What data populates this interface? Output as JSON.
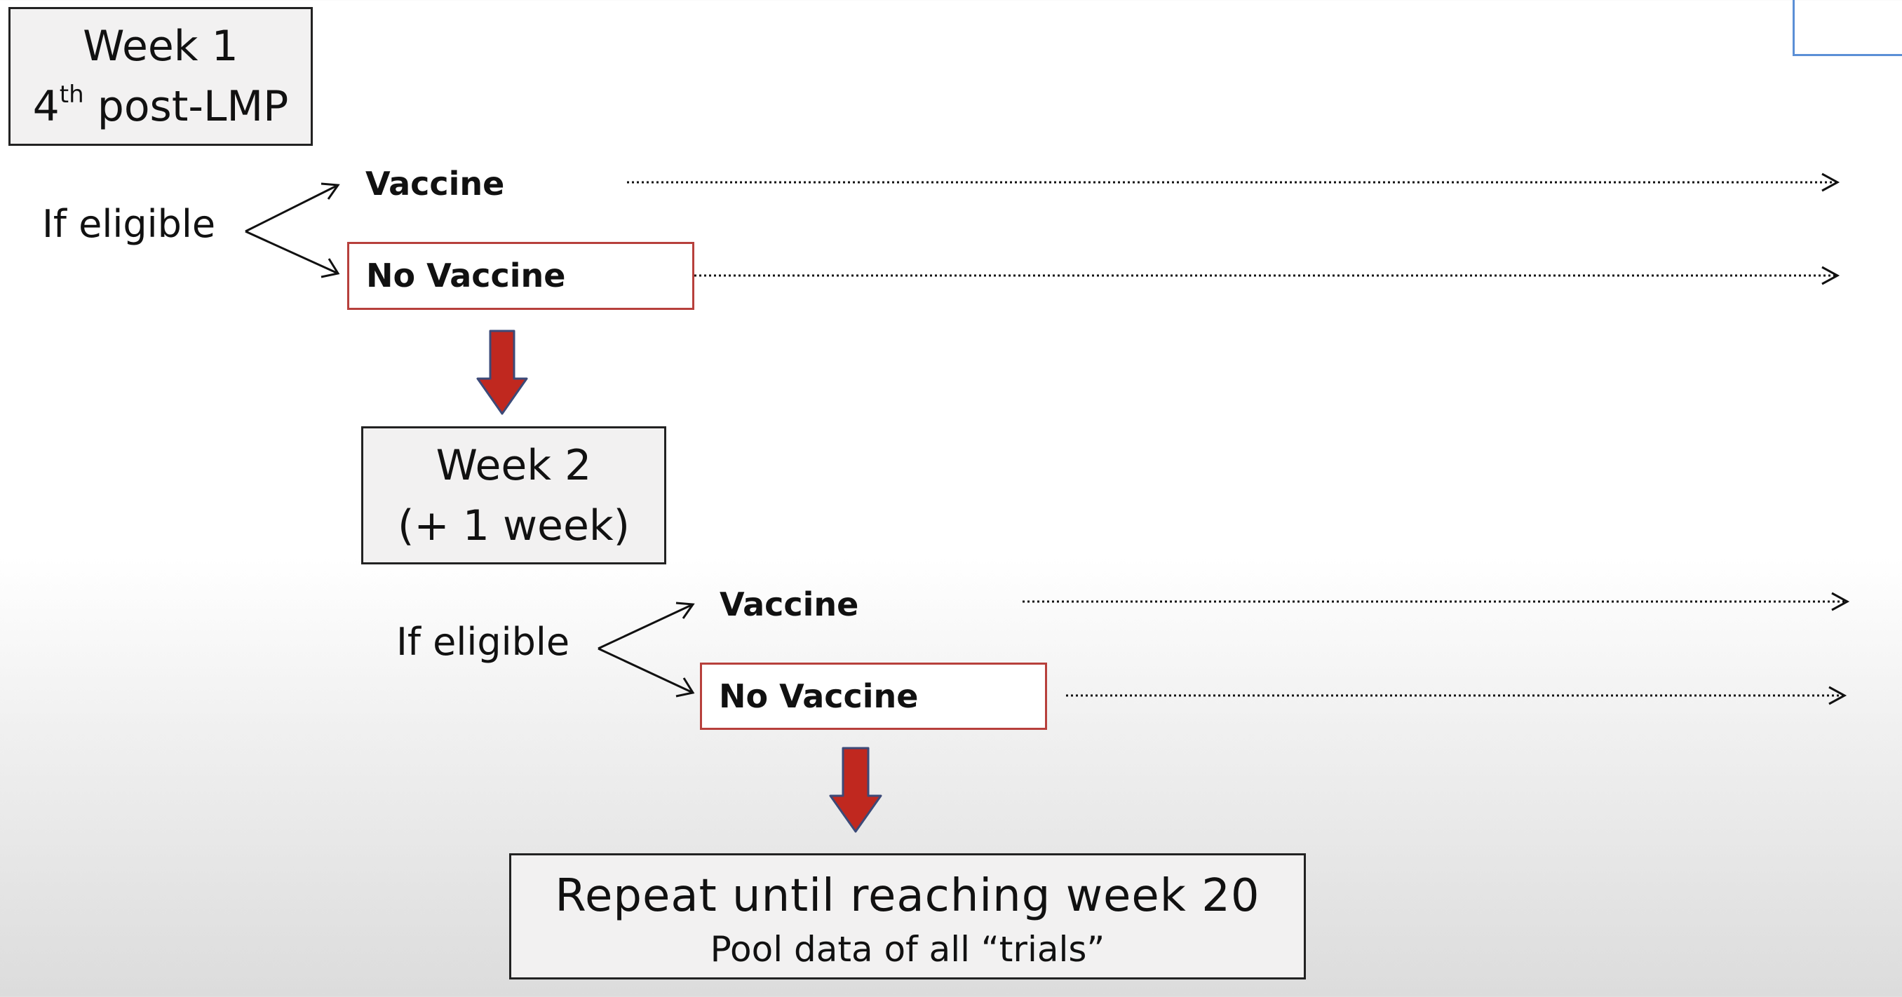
{
  "colors": {
    "box_fill": "#f2f1f1",
    "box_border": "#222222",
    "no_vaccine_border": "#b7403c",
    "down_arrow_fill": "#c0281f",
    "down_arrow_stroke": "#3c4a78",
    "corner_outline": "#5b8fd6"
  },
  "week1": {
    "title": "Week 1",
    "subtitle_number": "4",
    "subtitle_suffix": "th",
    "subtitle_rest": " post-LMP"
  },
  "week2": {
    "title": "Week 2",
    "subtitle": "(+ 1 week)"
  },
  "branch1": {
    "condition": "If eligible",
    "option_vaccine": "Vaccine",
    "option_no_vaccine": "No Vaccine"
  },
  "branch2": {
    "condition": "If eligible",
    "option_vaccine": "Vaccine",
    "option_no_vaccine": "No Vaccine"
  },
  "repeat": {
    "title": "Repeat until reaching week 20",
    "subtitle": "Pool data of all “trials”"
  }
}
